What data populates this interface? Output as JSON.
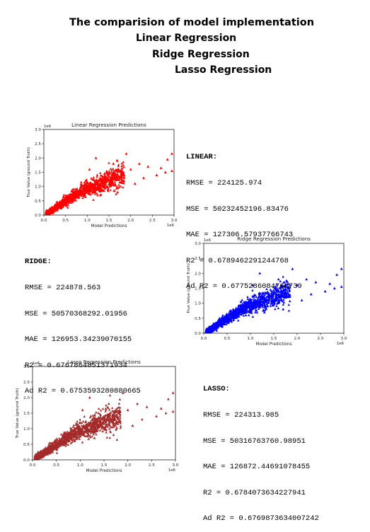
{
  "page": {
    "title_lines": [
      "The comparision of model implementation",
      "Linear Regression",
      "Ridge Regression",
      "Lasso Regression"
    ]
  },
  "metrics": {
    "linear": {
      "header": "LINEAR:",
      "lines": [
        "RMSE = 224125.974",
        "MSE = 50232452196.83476",
        "MAE = 127306.57937766743",
        "R2 = 0.6789462291244768",
        "Ad R2 = 0.6775286084768739"
      ]
    },
    "ridge": {
      "header": "RIDGE:",
      "lines": [
        "RMSE = 224878.563",
        "MSE = 50570368292.01956",
        "MAE = 126953.34239070155",
        "R2 = 0.6767864851371934",
        "Ad R2 = 0.6753593280880665"
      ]
    },
    "lasso": {
      "header": "LASSO:",
      "lines": [
        "RMSE = 224313.985",
        "MSE = 50316763760.98951",
        "MAE = 126872.44691078455",
        "R2 = 0.6784073634227941",
        "Ad R2 = 0.6769873634007242"
      ]
    }
  },
  "chart_data": [
    {
      "type": "scatter",
      "title": "Linear Regression Predictions",
      "xlabel": "Model Predictions",
      "ylabel": "True Value (ground Truth)",
      "xlim": [
        0,
        3000000
      ],
      "ylim": [
        0,
        3000000
      ],
      "xticks": [
        "0.0",
        "0.5",
        "1.0",
        "1.5",
        "2.0",
        "2.5",
        "3.0"
      ],
      "yticks": [
        "0.0",
        "0.5",
        "1.0",
        "1.5",
        "2.0",
        "2.5",
        "3.0"
      ],
      "x_exponent_label": "1e6",
      "y_exponent_label": "1e6",
      "marker": "triangle",
      "color": "#ff0000",
      "grid": false,
      "points": [
        [
          200000,
          100000
        ],
        [
          300000,
          250000
        ],
        [
          400000,
          350000
        ],
        [
          500000,
          450000
        ],
        [
          600000,
          500000
        ],
        [
          700000,
          650000
        ],
        [
          800000,
          700000
        ],
        [
          900000,
          850000
        ],
        [
          1000000,
          900000
        ],
        [
          1100000,
          1000000
        ],
        [
          1200000,
          1100000
        ],
        [
          1300000,
          1200000
        ],
        [
          1400000,
          1250000
        ],
        [
          1500000,
          1350000
        ],
        [
          1600000,
          1400000
        ],
        [
          1800000,
          1500000
        ],
        [
          2000000,
          1600000
        ],
        [
          2200000,
          1800000
        ],
        [
          2400000,
          1700000
        ],
        [
          2600000,
          1400000
        ],
        [
          2800000,
          1500000
        ],
        [
          2950000,
          2150000
        ],
        [
          2950000,
          1550000
        ],
        [
          2850000,
          1950000
        ],
        [
          2700000,
          1650000
        ],
        [
          1200000,
          2000000
        ],
        [
          1900000,
          2150000
        ],
        [
          1600000,
          1800000
        ],
        [
          1050000,
          1600000
        ],
        [
          1700000,
          800000
        ],
        [
          2100000,
          1100000
        ],
        [
          2300000,
          1300000
        ],
        [
          1300000,
          700000
        ]
      ]
    },
    {
      "type": "scatter",
      "title": "Ridge Regression Predictions",
      "xlabel": "Model Predictions",
      "ylabel": "True Value (ground Truth)",
      "xlim": [
        0,
        3000000
      ],
      "ylim": [
        0,
        3000000
      ],
      "xticks": [
        "0.0",
        "0.5",
        "1.0",
        "1.5",
        "2.0",
        "2.5",
        "3.0"
      ],
      "yticks": [
        "0.0",
        "0.5",
        "1.0",
        "1.5",
        "2.0",
        "2.5",
        "3.0"
      ],
      "x_exponent_label": "1e6",
      "y_exponent_label": "1e6",
      "marker": "triangle",
      "color": "#0000ff",
      "grid": false,
      "points": [
        [
          200000,
          100000
        ],
        [
          300000,
          250000
        ],
        [
          400000,
          350000
        ],
        [
          500000,
          450000
        ],
        [
          600000,
          500000
        ],
        [
          700000,
          650000
        ],
        [
          800000,
          700000
        ],
        [
          900000,
          850000
        ],
        [
          1000000,
          900000
        ],
        [
          1100000,
          1000000
        ],
        [
          1200000,
          1100000
        ],
        [
          1300000,
          1200000
        ],
        [
          1400000,
          1250000
        ],
        [
          1500000,
          1350000
        ],
        [
          1600000,
          1400000
        ],
        [
          1800000,
          1500000
        ],
        [
          2000000,
          1600000
        ],
        [
          2200000,
          1800000
        ],
        [
          2400000,
          1700000
        ],
        [
          2600000,
          1400000
        ],
        [
          2800000,
          1500000
        ],
        [
          2950000,
          2150000
        ],
        [
          2950000,
          1550000
        ],
        [
          2850000,
          1950000
        ],
        [
          2700000,
          1650000
        ],
        [
          1200000,
          2000000
        ],
        [
          1900000,
          2150000
        ],
        [
          1600000,
          1800000
        ],
        [
          1050000,
          1600000
        ],
        [
          1700000,
          800000
        ],
        [
          2100000,
          1100000
        ],
        [
          2300000,
          1300000
        ],
        [
          1300000,
          700000
        ]
      ]
    },
    {
      "type": "scatter",
      "title": "Lasso Regression Predictions",
      "xlabel": "Model Predictions",
      "ylabel": "True Value (ground Truth)",
      "xlim": [
        0,
        3000000
      ],
      "ylim": [
        0,
        3000000
      ],
      "xticks": [
        "0.0",
        "0.5",
        "1.0",
        "1.5",
        "2.0",
        "2.5",
        "3.0"
      ],
      "yticks": [
        "0.0",
        "0.5",
        "1.0",
        "1.5",
        "2.0",
        "2.5",
        "3.0"
      ],
      "x_exponent_label": "1e6",
      "y_exponent_label": "1e6",
      "marker": "triangle",
      "color": "#a52a2a",
      "grid": false,
      "points": [
        [
          200000,
          100000
        ],
        [
          300000,
          250000
        ],
        [
          400000,
          350000
        ],
        [
          500000,
          450000
        ],
        [
          600000,
          500000
        ],
        [
          700000,
          650000
        ],
        [
          800000,
          700000
        ],
        [
          900000,
          850000
        ],
        [
          1000000,
          900000
        ],
        [
          1100000,
          1000000
        ],
        [
          1200000,
          1100000
        ],
        [
          1300000,
          1200000
        ],
        [
          1400000,
          1250000
        ],
        [
          1500000,
          1350000
        ],
        [
          1600000,
          1400000
        ],
        [
          1800000,
          1500000
        ],
        [
          2000000,
          1600000
        ],
        [
          2200000,
          1800000
        ],
        [
          2400000,
          1700000
        ],
        [
          2600000,
          1400000
        ],
        [
          2800000,
          1500000
        ],
        [
          2950000,
          2150000
        ],
        [
          2950000,
          1550000
        ],
        [
          2850000,
          1950000
        ],
        [
          2700000,
          1650000
        ],
        [
          1200000,
          2000000
        ],
        [
          1900000,
          2150000
        ],
        [
          1600000,
          1800000
        ],
        [
          1050000,
          1600000
        ],
        [
          1700000,
          800000
        ],
        [
          2100000,
          1100000
        ],
        [
          2300000,
          1300000
        ],
        [
          1300000,
          700000
        ]
      ]
    }
  ]
}
